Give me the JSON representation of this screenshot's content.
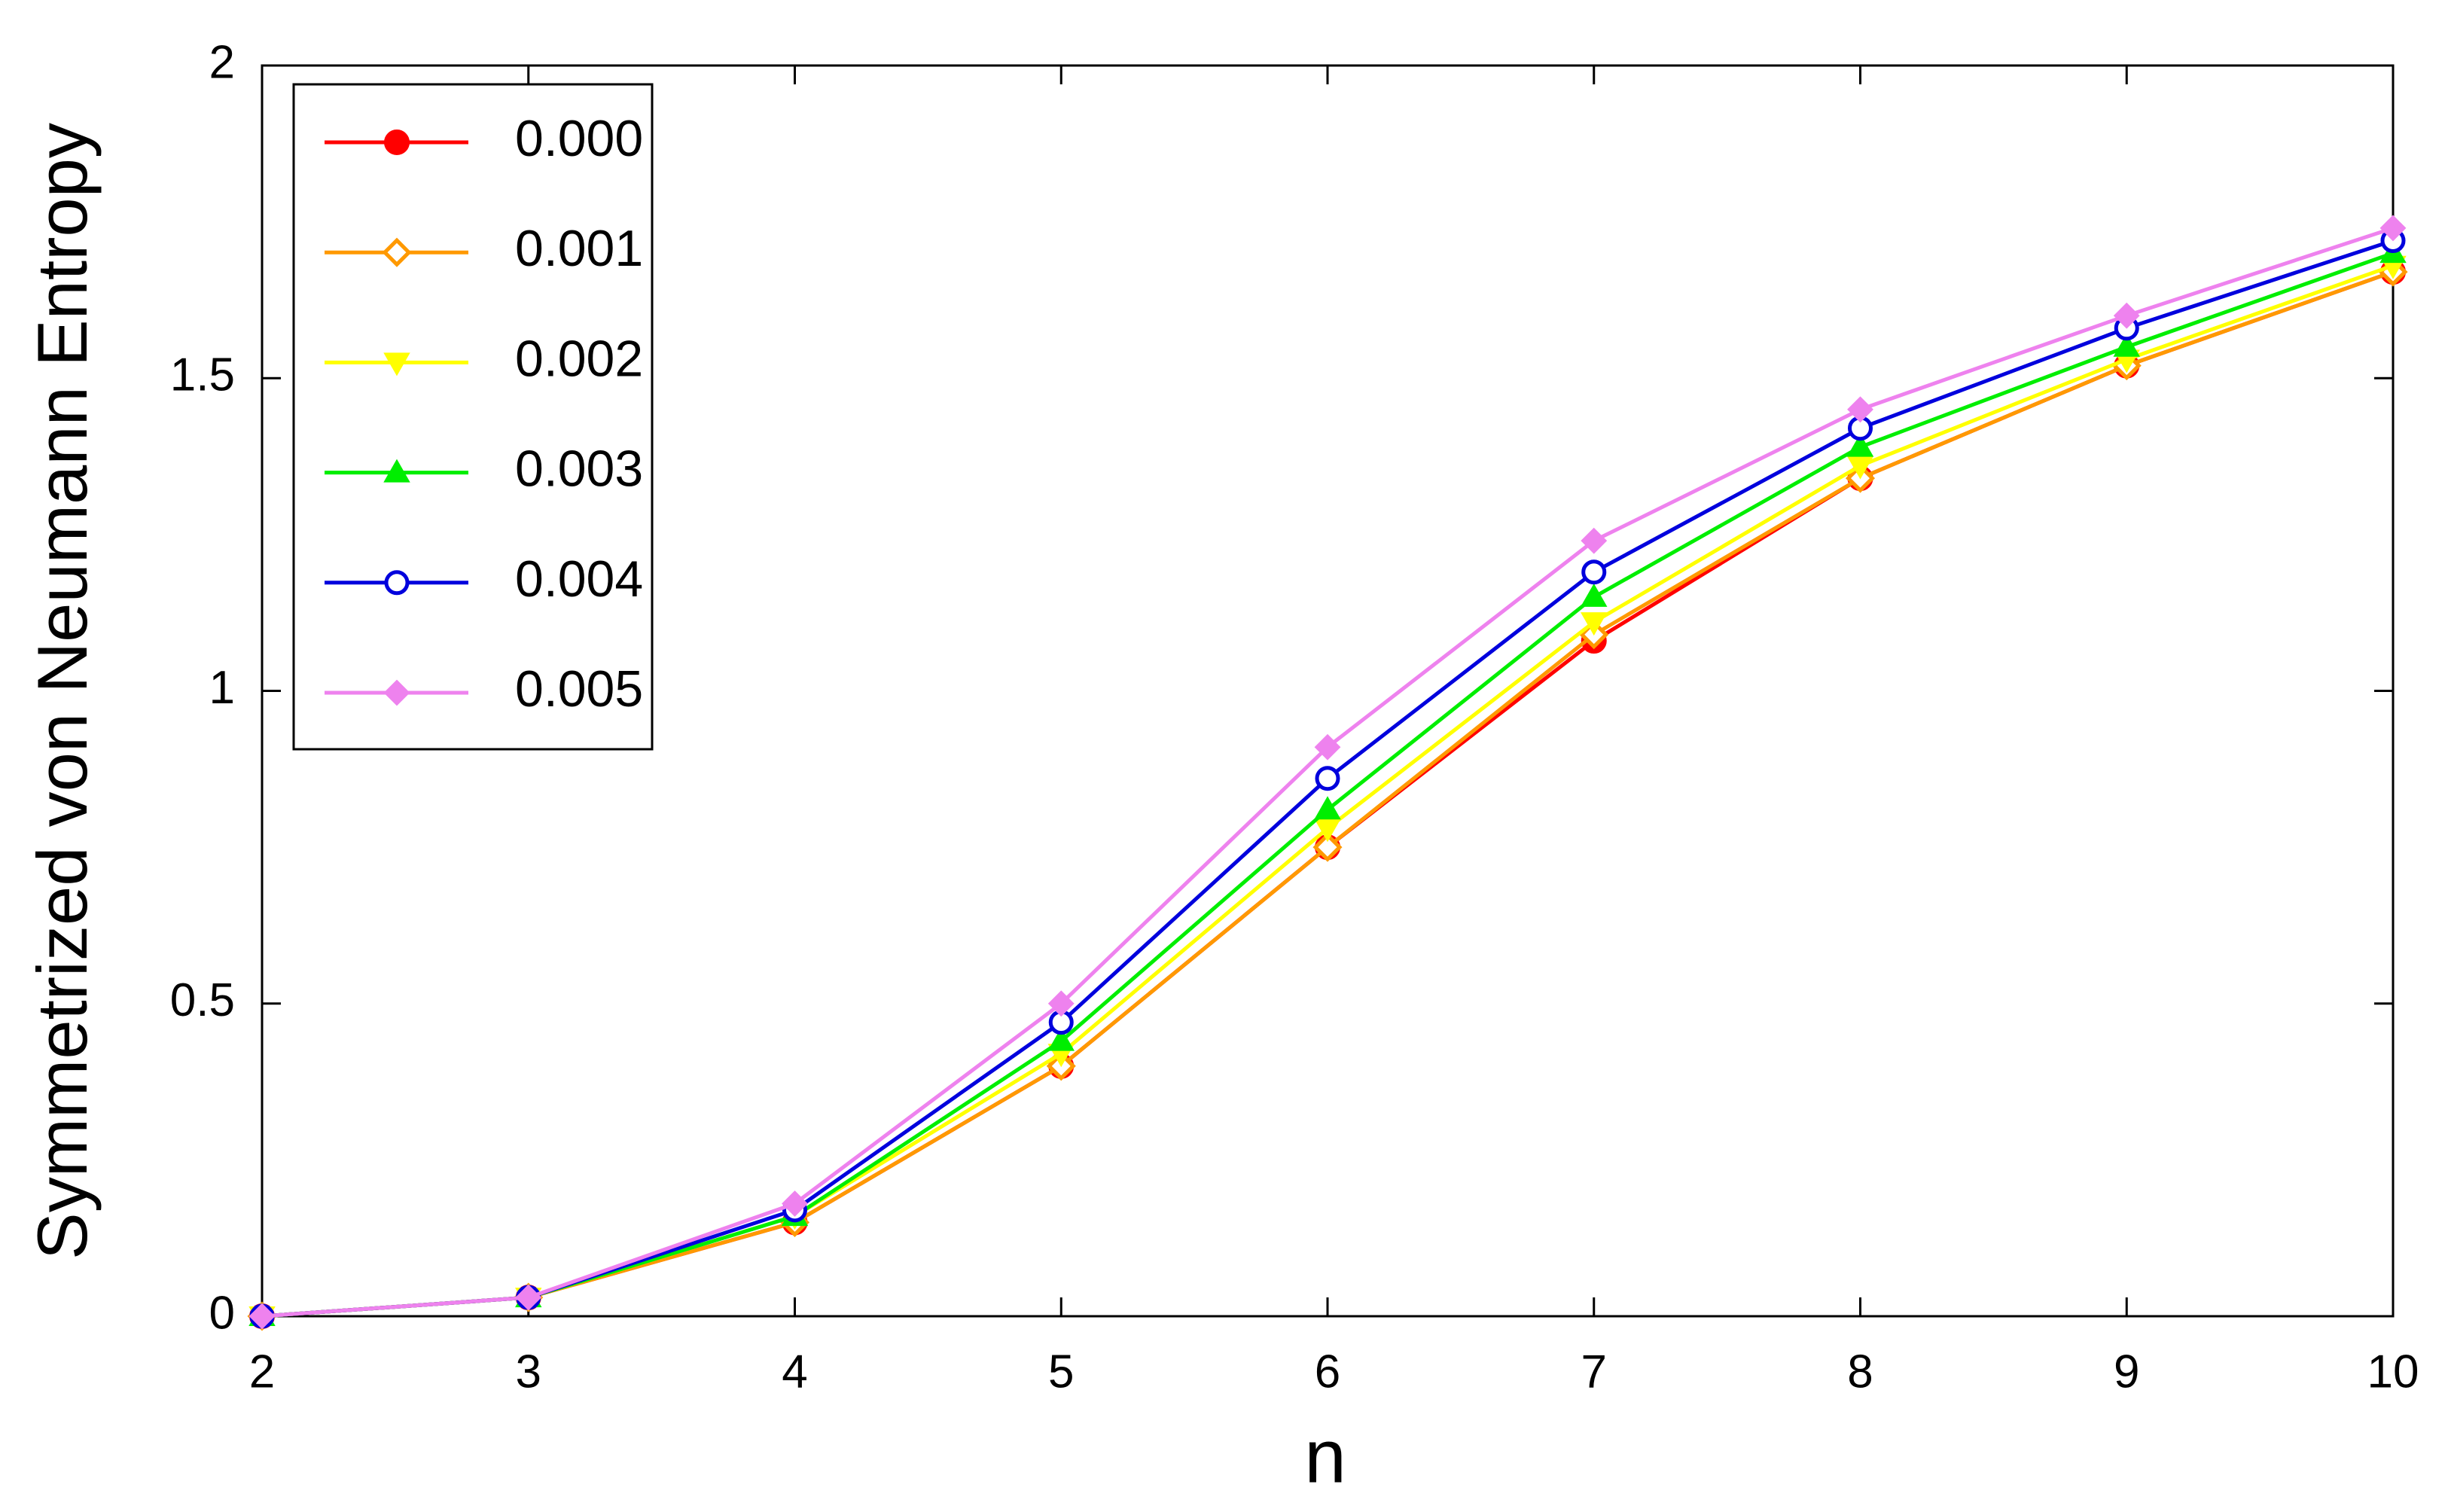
{
  "chart_data": {
    "type": "line",
    "ylabel": "Symmetrized von Neumann Entropy",
    "xlabel": "n",
    "x": [
      2,
      3,
      4,
      5,
      6,
      7,
      8,
      9,
      10
    ],
    "xlim": [
      2,
      10
    ],
    "xticks": [
      2,
      3,
      4,
      5,
      6,
      7,
      8,
      9,
      10
    ],
    "ylim": [
      0,
      2
    ],
    "yticks": [
      0,
      0.5,
      1,
      1.5,
      2
    ],
    "legend": "upper left",
    "series": [
      {
        "name": "0.000",
        "color": "#ff0000",
        "marker": "circle",
        "values": [
          0,
          0.03,
          0.15,
          0.4,
          0.75,
          1.08,
          1.34,
          1.52,
          1.67
        ]
      },
      {
        "name": "0.001",
        "color": "#ff9900",
        "marker": "diamond-open",
        "values": [
          0,
          0.03,
          0.15,
          0.4,
          0.75,
          1.09,
          1.34,
          1.52,
          1.67
        ]
      },
      {
        "name": "0.002",
        "color": "#ffff00",
        "marker": "triangle-down",
        "values": [
          0,
          0.03,
          0.16,
          0.42,
          0.78,
          1.11,
          1.36,
          1.53,
          1.68
        ]
      },
      {
        "name": "0.003",
        "color": "#00ee00",
        "marker": "triangle-up",
        "values": [
          0,
          0.03,
          0.16,
          0.44,
          0.81,
          1.15,
          1.39,
          1.55,
          1.7
        ]
      },
      {
        "name": "0.004",
        "color": "#0000dd",
        "marker": "circle-open",
        "values": [
          0,
          0.03,
          0.17,
          0.47,
          0.86,
          1.19,
          1.42,
          1.58,
          1.72
        ]
      },
      {
        "name": "0.005",
        "color": "#ee82ee",
        "marker": "diamond",
        "values": [
          0,
          0.03,
          0.18,
          0.5,
          0.91,
          1.24,
          1.45,
          1.6,
          1.74
        ]
      }
    ]
  }
}
